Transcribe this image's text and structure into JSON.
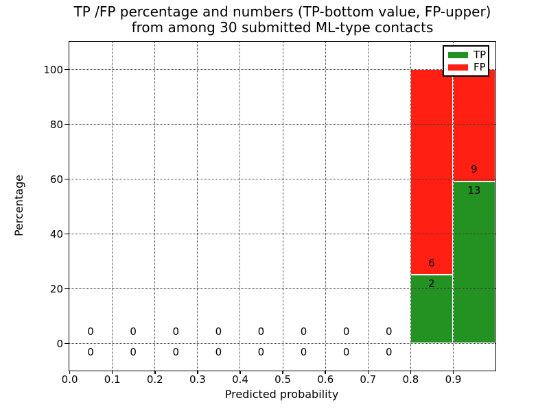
{
  "title": {
    "line1": "TP /FP percentage and numbers (TP-bottom value, FP-upper)",
    "line2": "from among 30 submitted ML-type contacts"
  },
  "chart_data": {
    "type": "bar",
    "stacked": true,
    "title": "TP /FP percentage and numbers (TP-bottom value, FP-upper) from among 30 submitted ML-type contacts",
    "xlabel": "Predicted probability",
    "ylabel": "Percentage",
    "xlim": [
      0.0,
      1.0
    ],
    "ylim": [
      -10,
      110
    ],
    "xticks": [
      "0.0",
      "0.1",
      "0.2",
      "0.3",
      "0.4",
      "0.5",
      "0.6",
      "0.7",
      "0.8",
      "0.9"
    ],
    "yticks": [
      0,
      20,
      40,
      60,
      80,
      100
    ],
    "grid": "dotted",
    "legend_position": "upper right",
    "total_submitted_contacts": 30,
    "series": [
      {
        "name": "TP",
        "color": "#249222"
      },
      {
        "name": "FP",
        "color": "#ff1f13"
      }
    ],
    "bins": [
      {
        "x0": 0.0,
        "x1": 0.1,
        "tp": 0,
        "fp": 0,
        "tp_pct": 0,
        "fp_pct": 0
      },
      {
        "x0": 0.1,
        "x1": 0.2,
        "tp": 0,
        "fp": 0,
        "tp_pct": 0,
        "fp_pct": 0
      },
      {
        "x0": 0.2,
        "x1": 0.3,
        "tp": 0,
        "fp": 0,
        "tp_pct": 0,
        "fp_pct": 0
      },
      {
        "x0": 0.3,
        "x1": 0.4,
        "tp": 0,
        "fp": 0,
        "tp_pct": 0,
        "fp_pct": 0
      },
      {
        "x0": 0.4,
        "x1": 0.5,
        "tp": 0,
        "fp": 0,
        "tp_pct": 0,
        "fp_pct": 0
      },
      {
        "x0": 0.5,
        "x1": 0.6,
        "tp": 0,
        "fp": 0,
        "tp_pct": 0,
        "fp_pct": 0
      },
      {
        "x0": 0.6,
        "x1": 0.7,
        "tp": 0,
        "fp": 0,
        "tp_pct": 0,
        "fp_pct": 0
      },
      {
        "x0": 0.7,
        "x1": 0.8,
        "tp": 0,
        "fp": 0,
        "tp_pct": 0,
        "fp_pct": 0
      },
      {
        "x0": 0.8,
        "x1": 0.9,
        "tp": 2,
        "fp": 6,
        "tp_pct": 25.0,
        "fp_pct": 75.0
      },
      {
        "x0": 0.9,
        "x1": 1.0,
        "tp": 13,
        "fp": 9,
        "tp_pct": 59.09,
        "fp_pct": 40.91
      }
    ]
  }
}
